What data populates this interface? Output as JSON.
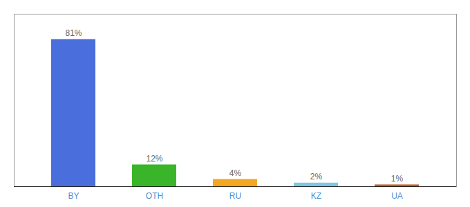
{
  "chart_data": {
    "type": "bar",
    "categories": [
      "BY",
      "OTH",
      "RU",
      "KZ",
      "UA"
    ],
    "values": [
      81,
      12,
      4,
      2,
      1
    ],
    "value_labels": [
      "81%",
      "12%",
      "4%",
      "2%",
      "1%"
    ],
    "colors": [
      "#4a6fdc",
      "#3ab529",
      "#f5a623",
      "#7ec8e3",
      "#c0622b"
    ],
    "data_labels": true,
    "ylim": [
      0,
      95
    ],
    "yticks": [],
    "grid": false,
    "tick_labels": "x"
  }
}
